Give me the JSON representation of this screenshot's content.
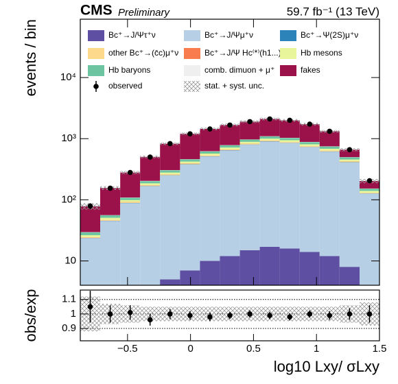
{
  "chart_data": [
    {
      "type": "stacked_histogram",
      "title": "CMS",
      "subtitle": "Preliminary",
      "annotation": "59.7 fb⁻¹ (13 TeV)",
      "ylabel": "events / bin",
      "log_scale": true,
      "bins": [
        -0.875,
        -0.717,
        -0.558,
        -0.4,
        -0.242,
        -0.083,
        0.075,
        0.233,
        0.392,
        0.55,
        0.708,
        0.867,
        1.025,
        1.183,
        1.342,
        1.5
      ],
      "xlim": [
        -0.875,
        1.5
      ],
      "ylim": [
        4,
        90000
      ],
      "yticks": [
        10,
        {
          "value": 100,
          "label": "10²"
        },
        {
          "value": 1000,
          "label": "10³"
        },
        {
          "value": 10000,
          "label": "10⁴"
        }
      ],
      "series": [
        {
          "name": "Bc⁺→J/Ψτ⁺ν",
          "color": "#5e4fa2",
          "values": [
            0.5,
            1,
            2,
            3,
            5,
            7,
            10,
            12,
            15,
            17,
            16,
            14,
            12,
            8,
            2
          ]
        },
        {
          "name": "Bc⁺→J/Ψμ⁺ν",
          "color": "#b7cfe4",
          "values": [
            23,
            44,
            86,
            163,
            245,
            370,
            500,
            630,
            780,
            880,
            830,
            710,
            600,
            400,
            124
          ]
        },
        {
          "name": "Bc⁺→Ψ(2S)μ⁺ν",
          "color": "#2c83ba",
          "values": [
            0.2,
            0.4,
            1,
            2,
            2,
            4,
            5,
            6,
            8,
            9,
            8,
            7,
            6,
            4,
            1
          ]
        },
        {
          "name": "other Bc⁺→(c̄c)μ⁺ν",
          "color": "#fdd98c",
          "values": [
            0.5,
            1,
            2,
            3,
            5,
            7,
            10,
            12,
            15,
            17,
            16,
            14,
            12,
            8,
            2
          ]
        },
        {
          "name": "Bc⁺→J/Ψ Hc⁽*⁾(h1...)",
          "color": "#f87c4e",
          "values": [
            0.2,
            0.4,
            1,
            2,
            2,
            4,
            5,
            6,
            8,
            9,
            8,
            7,
            6,
            4,
            1
          ]
        },
        {
          "name": "Hb mesons",
          "color": "#e9f59b",
          "values": [
            2,
            4,
            7,
            13,
            20,
            30,
            40,
            50,
            62,
            70,
            66,
            57,
            48,
            32,
            10
          ]
        },
        {
          "name": "Hb baryons",
          "color": "#6cc5a0",
          "values": [
            3,
            5,
            9,
            16,
            25,
            37,
            50,
            63,
            78,
            88,
            83,
            71,
            60,
            40,
            12
          ]
        },
        {
          "name": "comb. dimuon + μ⁺",
          "color": "#efefef",
          "values": [
            0.2,
            0.4,
            1,
            2,
            2,
            3,
            4,
            5,
            6,
            7,
            6,
            5,
            5,
            3,
            1
          ]
        },
        {
          "name": "fakes",
          "color": "#9b1149",
          "values": [
            49,
            100,
            170,
            300,
            520,
            740,
            820,
            890,
            930,
            1000,
            960,
            840,
            570,
            160,
            50
          ]
        }
      ],
      "observed": {
        "name": "observed",
        "values": [
          79,
          155,
          280,
          500,
          830,
          1200,
          1440,
          1670,
          1900,
          2100,
          2000,
          1730,
          1320,
          660,
          205
        ],
        "errors": [
          9,
          12,
          17,
          22,
          29,
          35,
          38,
          41,
          44,
          46,
          45,
          42,
          36,
          26,
          14
        ]
      },
      "uncertainty": {
        "name": "stat. + syst. unc.",
        "values": [
          0.12,
          0.07,
          0.06,
          0.05,
          0.05,
          0.05,
          0.05,
          0.05,
          0.05,
          0.05,
          0.05,
          0.05,
          0.05,
          0.06,
          0.08
        ]
      }
    },
    {
      "type": "ratio",
      "ylabel": "obs/exp",
      "xlabel": "log10 Lxy/ σLxy",
      "xlim": [
        -0.875,
        1.5
      ],
      "xticks": [
        {
          "value": -0.5,
          "label": "−0.5"
        },
        0,
        0.5,
        1,
        1.5
      ],
      "ylim": [
        0.815,
        1.165
      ],
      "yticks": [
        0.9,
        1,
        1.1
      ],
      "values": [
        1.05,
        1.0,
        1.01,
        0.96,
        1.0,
        0.99,
        0.98,
        0.99,
        1.0,
        0.99,
        0.98,
        1.0,
        0.99,
        1.0,
        1.0
      ],
      "errors": [
        0.11,
        0.06,
        0.05,
        0.04,
        0.035,
        0.03,
        0.03,
        0.025,
        0.025,
        0.025,
        0.025,
        0.025,
        0.03,
        0.04,
        0.06
      ]
    }
  ]
}
